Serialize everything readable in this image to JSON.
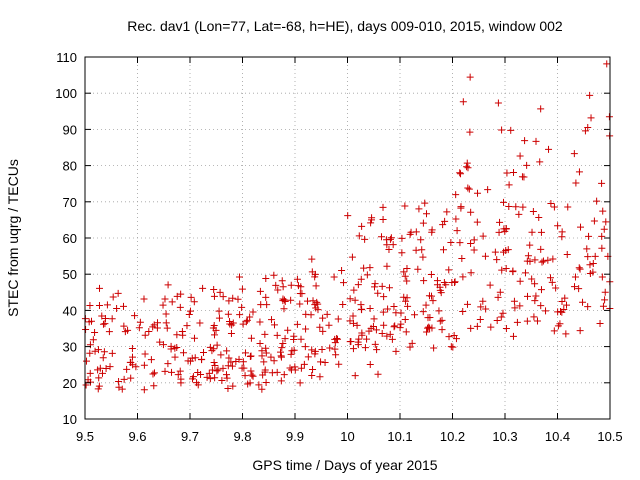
{
  "chart_data": {
    "type": "scatter",
    "title": "Rec. dav1 (Lon=77, Lat=-68, h=HE), days 009-010, 2015, window 002",
    "xlabel": "GPS time / Days of year 2015",
    "ylabel": "STEC from uqrg / TECUs",
    "xlim": [
      9.5,
      10.5
    ],
    "ylim": [
      10,
      110
    ],
    "x_ticks": [
      "9.5",
      "9.6",
      "9.7",
      "9.8",
      "9.9",
      "10",
      "10.1",
      "10.2",
      "10.3",
      "10.4",
      "10.5"
    ],
    "y_ticks": [
      "10",
      "20",
      "30",
      "40",
      "50",
      "60",
      "70",
      "80",
      "90",
      "100",
      "110"
    ],
    "grid": true,
    "legend": "none",
    "marker": "plus",
    "point_color": "#cc0000",
    "point_count": 620
  }
}
